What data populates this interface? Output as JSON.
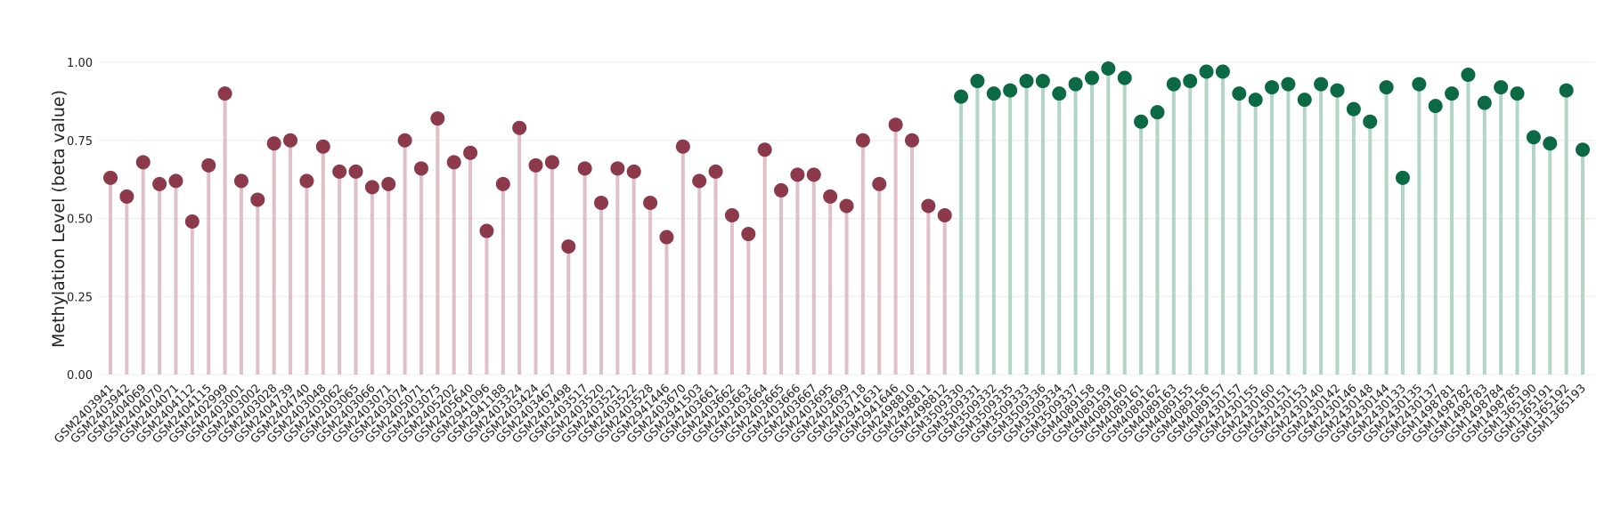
{
  "chart_data": {
    "type": "lollipop",
    "y_label": "Methylation Level (beta value)",
    "categories": [
      "GSM2403941",
      "GSM2403942",
      "GSM2404069",
      "GSM2404070",
      "GSM2404071",
      "GSM2404112",
      "GSM2404115",
      "GSM2402999",
      "GSM2403001",
      "GSM2403002",
      "GSM2403028",
      "GSM2404739",
      "GSM2404740",
      "GSM2403048",
      "GSM2403062",
      "GSM2403065",
      "GSM2403066",
      "GSM2403071",
      "GSM2403074",
      "GSM2405071",
      "GSM2403075",
      "GSM2405202",
      "GSM2405640",
      "GSM2941096",
      "GSM2941188",
      "GSM2403324",
      "GSM2403424",
      "GSM2403467",
      "GSM2403498",
      "GSM2403517",
      "GSM2403520",
      "GSM2403521",
      "GSM2403522",
      "GSM2403528",
      "GSM2941446",
      "GSM2403670",
      "GSM2941503",
      "GSM2403661",
      "GSM2403662",
      "GSM2403663",
      "GSM2403664",
      "GSM2403665",
      "GSM2403666",
      "GSM2403667",
      "GSM2403695",
      "GSM2403699",
      "GSM2403718",
      "GSM2941631",
      "GSM2941646",
      "GSM2498810",
      "GSM2498811",
      "GSM2498812",
      "GSM3509330",
      "GSM3509331",
      "GSM3509332",
      "GSM3509335",
      "GSM3509333",
      "GSM3509336",
      "GSM3509334",
      "GSM3509337",
      "GSM4089158",
      "GSM4089159",
      "GSM4089160",
      "GSM4089161",
      "GSM4089162",
      "GSM4089163",
      "GSM4089155",
      "GSM4089156",
      "GSM4089157",
      "GSM2430157",
      "GSM2430155",
      "GSM2430160",
      "GSM2430151",
      "GSM2430153",
      "GSM2430140",
      "GSM2430142",
      "GSM2430146",
      "GSM2430148",
      "GSM2430144",
      "GSM2430133",
      "GSM2430135",
      "GSM2430137",
      "GSM1498781",
      "GSM1498782",
      "GSM1498783",
      "GSM1498784",
      "GSM1498785",
      "GSM1365190",
      "GSM1365191",
      "GSM1365192",
      "GSM1365193"
    ],
    "series": [
      {
        "color": "#8c3a4b",
        "stem_color": "#dfbfc8",
        "values": [
          0.63,
          0.57,
          0.68,
          0.61,
          0.62,
          0.49,
          0.67,
          0.9,
          0.62,
          0.56,
          0.74,
          0.75,
          0.62,
          0.73,
          0.65,
          0.65,
          0.6,
          0.61,
          0.75,
          0.66,
          0.82,
          0.68,
          0.71,
          0.46,
          0.61,
          0.79,
          0.67,
          0.68,
          0.41,
          0.66,
          0.55,
          0.66,
          0.65,
          0.55,
          0.44,
          0.73,
          0.62,
          0.65,
          0.51,
          0.45,
          0.72,
          0.59,
          0.64,
          0.64,
          0.57,
          0.54,
          0.75,
          0.61,
          0.8,
          0.75,
          0.54,
          0.51,
          null,
          null,
          null,
          null,
          null,
          null,
          null,
          null,
          null,
          null,
          null,
          null,
          null,
          null,
          null,
          null,
          null,
          null,
          null,
          null,
          null,
          null,
          null,
          null,
          null,
          null,
          null,
          null,
          null,
          null,
          null,
          null,
          null,
          null,
          null,
          null,
          null,
          null,
          null
        ]
      },
      {
        "color": "#0b6a44",
        "stem_color": "#b2d5c6",
        "values": [
          null,
          null,
          null,
          null,
          null,
          null,
          null,
          null,
          null,
          null,
          null,
          null,
          null,
          null,
          null,
          null,
          null,
          null,
          null,
          null,
          null,
          null,
          null,
          null,
          null,
          null,
          null,
          null,
          null,
          null,
          null,
          null,
          null,
          null,
          null,
          null,
          null,
          null,
          null,
          null,
          null,
          null,
          null,
          null,
          null,
          null,
          null,
          null,
          null,
          null,
          null,
          null,
          0.89,
          0.94,
          0.9,
          0.91,
          0.94,
          0.94,
          0.9,
          0.93,
          0.95,
          0.98,
          0.95,
          0.81,
          0.84,
          0.93,
          0.94,
          0.97,
          0.97,
          0.9,
          0.88,
          0.92,
          0.93,
          0.88,
          0.93,
          0.91,
          0.85,
          0.81,
          0.92,
          0.63,
          0.93,
          0.86,
          0.9,
          0.96,
          0.87,
          0.92,
          0.9,
          0.76,
          0.74,
          0.91,
          0.72
        ]
      }
    ],
    "ylim": [
      0,
      1
    ],
    "yticks": [
      {
        "value": 0,
        "label": "0.00"
      },
      {
        "value": 0.25,
        "label": "0.25"
      },
      {
        "value": 0.5,
        "label": "0.50"
      },
      {
        "value": 0.75,
        "label": "0.75"
      },
      {
        "value": 1,
        "label": "1.00"
      }
    ],
    "grid": true
  }
}
